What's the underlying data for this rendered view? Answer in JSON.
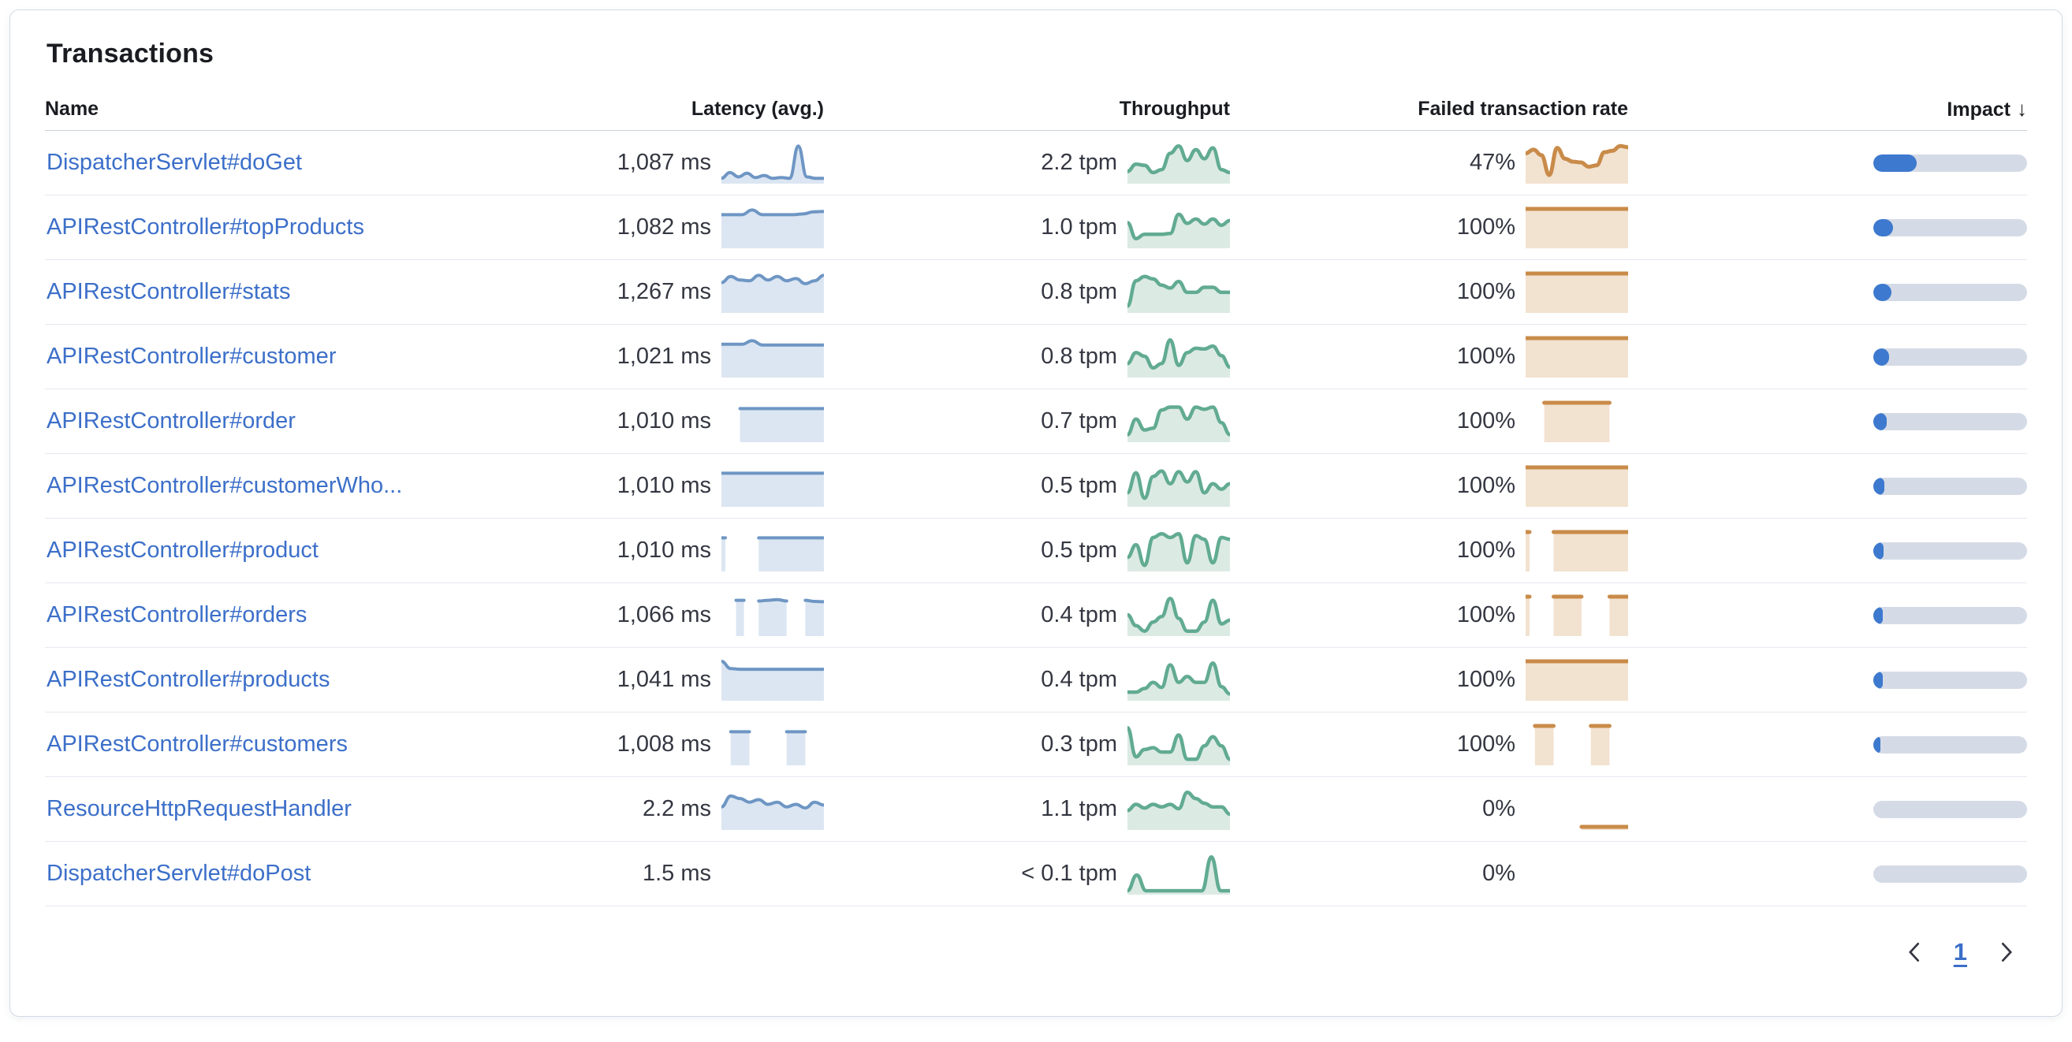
{
  "panel": {
    "title": "Transactions"
  },
  "table": {
    "headers": {
      "name": "Name",
      "latency": "Latency (avg.)",
      "throughput": "Throughput",
      "failed": "Failed transaction rate",
      "impact": "Impact"
    },
    "sort": {
      "column": "impact",
      "direction": "desc",
      "indicator": "↓"
    },
    "rows": [
      {
        "name": "DispatcherServlet#doGet",
        "latency": "1,087 ms",
        "throughput": "2.2 tpm",
        "failed_rate": "47%",
        "impact_pct": 28,
        "latency_spark": [
          0.06,
          0.22,
          0.1,
          0.2,
          0.08,
          0.14,
          0.06,
          0.08,
          0.06,
          0.95,
          0.1,
          0.06,
          0.06
        ],
        "throughput_spark": [
          0.25,
          0.45,
          0.42,
          0.22,
          0.3,
          0.75,
          0.95,
          0.55,
          0.85,
          0.6,
          0.9,
          0.3,
          0.22
        ],
        "failed_spark": [
          0.75,
          0.85,
          0.7,
          0.15,
          0.9,
          0.6,
          0.52,
          0.5,
          0.38,
          0.42,
          0.78,
          0.82,
          0.95,
          0.92
        ]
      },
      {
        "name": "APIRestController#topProducts",
        "latency": "1,082 ms",
        "throughput": "1.0 tpm",
        "failed_rate": "100%",
        "impact_pct": 13,
        "latency_spark": [
          0.84,
          0.84,
          0.84,
          0.97,
          0.84,
          0.84,
          0.84,
          0.84,
          0.86,
          0.92,
          0.93
        ],
        "throughput_spark": [
          0.62,
          0.18,
          0.3,
          0.3,
          0.3,
          0.32,
          0.85,
          0.6,
          0.72,
          0.58,
          0.72,
          0.55,
          0.68
        ],
        "failed_spark": [
          1,
          1,
          1,
          1,
          1,
          1,
          1,
          1,
          1,
          1,
          1,
          1
        ]
      },
      {
        "name": "APIRestController#stats",
        "latency": "1,267 ms",
        "throughput": "0.8 tpm",
        "failed_rate": "100%",
        "impact_pct": 12,
        "latency_spark": [
          0.75,
          0.92,
          0.82,
          0.8,
          0.95,
          0.82,
          0.92,
          0.8,
          0.86,
          0.72,
          0.8,
          0.95
        ],
        "throughput_spark": [
          0.1,
          0.8,
          0.92,
          0.85,
          0.68,
          0.6,
          0.78,
          0.48,
          0.48,
          0.62,
          0.62,
          0.48,
          0.48
        ],
        "failed_spark": [
          1,
          1,
          1,
          1,
          1,
          1,
          1,
          1,
          1,
          1,
          1,
          1
        ]
      },
      {
        "name": "APIRestController#customer",
        "latency": "1,021 ms",
        "throughput": "0.8 tpm",
        "failed_rate": "100%",
        "impact_pct": 10,
        "latency_spark": [
          0.83,
          0.83,
          0.83,
          0.93,
          0.81,
          0.81,
          0.81,
          0.81,
          0.81,
          0.81,
          0.81
        ],
        "throughput_spark": [
          0.3,
          0.6,
          0.5,
          0.18,
          0.3,
          0.95,
          0.25,
          0.6,
          0.72,
          0.7,
          0.78,
          0.52,
          0.2
        ],
        "failed_spark": [
          1,
          1,
          1,
          1,
          1,
          1,
          1,
          1,
          1,
          1,
          1,
          1
        ]
      },
      {
        "name": "APIRestController#order",
        "latency": "1,010 ms",
        "throughput": "0.7 tpm",
        "failed_rate": "100%",
        "impact_pct": 8.5,
        "latency_spark": [
          null,
          null,
          0.84,
          0.84,
          0.84,
          0.84,
          0.84,
          0.84,
          0.84,
          0.84,
          0.84,
          0.84
        ],
        "throughput_spark": [
          0.12,
          0.55,
          0.25,
          0.3,
          0.8,
          0.88,
          0.88,
          0.55,
          0.88,
          0.82,
          0.88,
          0.45,
          0.12
        ],
        "failed_spark": [
          null,
          null,
          1,
          1,
          1,
          1,
          1,
          1,
          1,
          1,
          null,
          null
        ]
      },
      {
        "name": "APIRestController#customerWho...",
        "latency": "1,010 ms",
        "throughput": "0.5 tpm",
        "failed_rate": "100%",
        "impact_pct": 7,
        "latency_spark": [
          0.84,
          0.84,
          0.84,
          0.84,
          0.84,
          0.84,
          0.84,
          0.84,
          0.84,
          0.84,
          0.84,
          0.84
        ],
        "throughput_spark": [
          0.3,
          0.85,
          0.15,
          0.75,
          0.9,
          0.55,
          0.88,
          0.6,
          0.88,
          0.3,
          0.55,
          0.4,
          0.55
        ],
        "failed_spark": [
          1,
          1,
          1,
          1,
          1,
          1,
          1,
          1,
          1,
          1,
          1,
          1
        ]
      },
      {
        "name": "APIRestController#product",
        "latency": "1,010 ms",
        "throughput": "0.5 tpm",
        "failed_rate": "100%",
        "impact_pct": 6.5,
        "latency_spark": [
          0.84,
          null,
          null,
          null,
          0.84,
          0.84,
          0.84,
          0.84,
          0.84,
          0.84,
          0.84,
          0.84
        ],
        "throughput_spark": [
          0.3,
          0.65,
          0.08,
          0.85,
          0.95,
          0.85,
          0.95,
          0.15,
          0.9,
          0.8,
          0.15,
          0.85,
          0.8
        ],
        "failed_spark": [
          1,
          null,
          null,
          1,
          1,
          1,
          1,
          1,
          1,
          1,
          1,
          1
        ]
      },
      {
        "name": "APIRestController#orders",
        "latency": "1,066 ms",
        "throughput": "0.4 tpm",
        "failed_rate": "100%",
        "impact_pct": 6,
        "latency_spark": [
          null,
          null,
          0.9,
          null,
          0.88,
          0.9,
          0.92,
          0.88,
          null,
          0.9,
          0.87,
          0.86
        ],
        "throughput_spark": [
          0.5,
          0.2,
          0.05,
          0.3,
          0.45,
          0.95,
          0.4,
          0.05,
          0.05,
          0.3,
          0.9,
          0.25,
          0.35
        ],
        "failed_spark": [
          1,
          null,
          null,
          1,
          1,
          1,
          1,
          null,
          null,
          1,
          1,
          1
        ]
      },
      {
        "name": "APIRestController#products",
        "latency": "1,041 ms",
        "throughput": "0.4 tpm",
        "failed_rate": "100%",
        "impact_pct": 6,
        "latency_spark": [
          1.0,
          0.8,
          0.78,
          0.78,
          0.78,
          0.78,
          0.78,
          0.78,
          0.78,
          0.78,
          0.78,
          0.78
        ],
        "throughput_spark": [
          0.15,
          0.15,
          0.25,
          0.42,
          0.28,
          0.9,
          0.42,
          0.58,
          0.42,
          0.42,
          0.95,
          0.3,
          0.1
        ],
        "failed_spark": [
          1,
          1,
          1,
          1,
          1,
          1,
          1,
          1,
          1,
          1,
          1,
          1
        ]
      },
      {
        "name": "APIRestController#customers",
        "latency": "1,008 ms",
        "throughput": "0.3 tpm",
        "failed_rate": "100%",
        "impact_pct": 4.5,
        "latency_spark": [
          null,
          0.84,
          0.84,
          0.84,
          null,
          null,
          null,
          0.84,
          0.84,
          0.84,
          null,
          null
        ],
        "throughput_spark": [
          0.95,
          0.15,
          0.35,
          0.4,
          0.28,
          0.28,
          0.75,
          0.08,
          0.08,
          0.45,
          0.7,
          0.45,
          0.08
        ],
        "failed_spark": [
          null,
          1,
          1,
          1,
          null,
          null,
          null,
          1,
          1,
          1,
          null,
          null
        ]
      },
      {
        "name": "ResourceHttpRequestHandler",
        "latency": "2.2 ms",
        "throughput": "1.1 tpm",
        "failed_rate": "0%",
        "impact_pct": 0,
        "latency_spark": [
          0.55,
          0.85,
          0.78,
          0.68,
          0.75,
          0.62,
          0.68,
          0.55,
          0.62,
          0.52,
          0.68,
          0.6
        ],
        "throughput_spark": [
          0.45,
          0.62,
          0.52,
          0.62,
          0.55,
          0.62,
          0.5,
          0.95,
          0.78,
          0.65,
          0.55,
          0.55,
          0.35
        ],
        "failed_spark": [
          null,
          null,
          null,
          null,
          null,
          null,
          0,
          0,
          0,
          0,
          0,
          0
        ]
      },
      {
        "name": "DispatcherServlet#doPost",
        "latency": "1.5 ms",
        "throughput": "< 0.1 tpm",
        "failed_rate": "0%",
        "impact_pct": 0,
        "latency_spark": null,
        "throughput_spark": [
          0.02,
          0.45,
          0.02,
          0.02,
          0.02,
          0.02,
          0.02,
          0.02,
          0.02,
          0.95,
          0.02,
          0.02
        ],
        "failed_spark": null
      }
    ]
  },
  "pagination": {
    "current_page": "1"
  },
  "colors": {
    "link_blue": "#3C6FC9",
    "latency_line": "#6E96C4",
    "latency_fill": "#DCE6F2",
    "throughput_line": "#61AB92",
    "throughput_fill": "#DCEAE4",
    "failed_line": "#C98B49",
    "failed_fill": "#F2E2D0",
    "impact_fill": "#3D79CE",
    "impact_track": "#D5DBE6"
  }
}
